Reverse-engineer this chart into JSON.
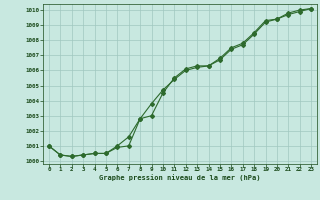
{
  "line1": [
    1001.0,
    1000.4,
    1000.3,
    1000.4,
    1000.5,
    1000.5,
    1000.9,
    1001.0,
    1002.8,
    1003.0,
    1004.5,
    1005.5,
    1006.1,
    1006.3,
    1006.3,
    1006.8,
    1007.5,
    1007.8,
    1008.5,
    1009.3,
    1009.4,
    1009.8,
    1010.0,
    1010.1
  ],
  "line2": [
    1001.0,
    1000.4,
    1000.3,
    1000.4,
    1000.5,
    1000.5,
    1001.0,
    1001.6,
    1002.8,
    1003.8,
    1004.7,
    1005.4,
    1006.0,
    1006.2,
    1006.3,
    1006.7,
    1007.4,
    1007.7,
    1008.4,
    1009.2,
    1009.4,
    1009.7,
    1009.9,
    1010.1
  ],
  "hours": [
    0,
    1,
    2,
    3,
    4,
    5,
    6,
    7,
    8,
    9,
    10,
    11,
    12,
    13,
    14,
    15,
    16,
    17,
    18,
    19,
    20,
    21,
    22,
    23
  ],
  "ylim": [
    999.8,
    1010.4
  ],
  "yticks": [
    1000,
    1001,
    1002,
    1003,
    1004,
    1005,
    1006,
    1007,
    1008,
    1009,
    1010
  ],
  "line_color": "#2d6a2d",
  "bg_color": "#c8e8e0",
  "grid_color": "#a0c8c0",
  "xlabel": "Graphe pression niveau de la mer (hPa)",
  "xlabel_color": "#1a4a1a",
  "tick_color": "#1a4a1a",
  "marker": "D",
  "marker_size": 2.0,
  "linewidth": 0.8
}
